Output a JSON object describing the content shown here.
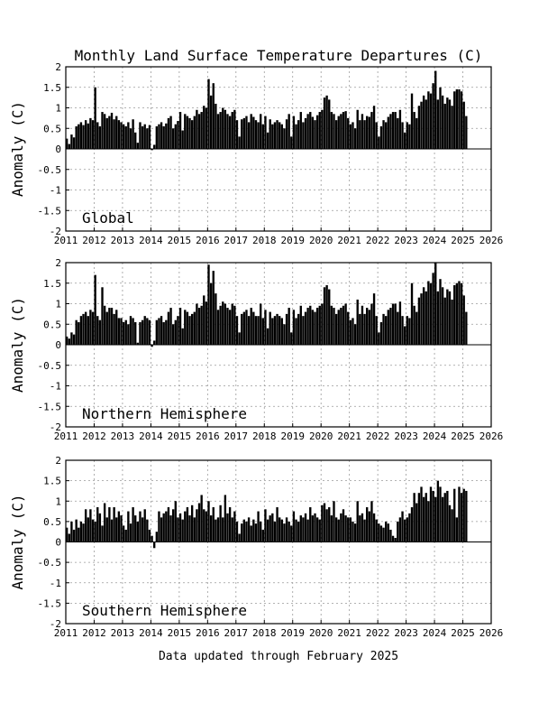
{
  "title": "Monthly Land Surface Temperature Departures (C)",
  "footer": "Data updated through February 2025",
  "chart_data": [
    {
      "type": "bar",
      "name": "Global",
      "panel_label": "Global",
      "ylabel": "Anomaly (C)",
      "xlim": [
        2011,
        2026
      ],
      "ylim": [
        -2,
        2
      ],
      "x_ticks": [
        "2011",
        "2012",
        "2013",
        "2014",
        "2015",
        "2016",
        "2017",
        "2018",
        "2019",
        "2020",
        "2021",
        "2022",
        "2023",
        "2024",
        "2025",
        "2026"
      ],
      "y_ticks": [
        "-2",
        "-1.5",
        "-1",
        "-0.5",
        "0",
        "0.5",
        "1",
        "1.5",
        "2"
      ],
      "grid": true,
      "x_start": "2011-01",
      "values": [
        0.25,
        0.12,
        0.35,
        0.28,
        0.55,
        0.6,
        0.65,
        0.58,
        0.7,
        0.62,
        0.75,
        0.7,
        1.5,
        0.65,
        0.55,
        0.9,
        0.85,
        0.75,
        0.8,
        0.88,
        0.72,
        0.8,
        0.7,
        0.65,
        0.6,
        0.55,
        0.65,
        0.5,
        0.72,
        0.4,
        0.15,
        0.65,
        0.55,
        0.6,
        0.5,
        0.58,
        -0.03,
        0.1,
        0.55,
        0.6,
        0.65,
        0.55,
        0.62,
        0.75,
        0.8,
        0.5,
        0.6,
        0.68,
        0.9,
        0.45,
        0.85,
        0.8,
        0.75,
        0.7,
        0.8,
        0.95,
        0.85,
        0.9,
        1.05,
        1.0,
        1.7,
        1.3,
        1.6,
        1.1,
        0.85,
        0.9,
        1.0,
        0.95,
        0.85,
        0.8,
        0.9,
        0.95,
        0.7,
        0.3,
        0.72,
        0.75,
        0.8,
        0.65,
        0.85,
        0.78,
        0.7,
        0.65,
        0.85,
        0.6,
        0.8,
        0.4,
        0.72,
        0.6,
        0.65,
        0.7,
        0.65,
        0.6,
        0.5,
        0.72,
        0.85,
        0.3,
        0.8,
        0.6,
        0.7,
        0.9,
        0.65,
        0.75,
        0.85,
        0.9,
        0.78,
        0.7,
        0.82,
        0.9,
        0.95,
        1.25,
        1.3,
        1.2,
        0.9,
        0.85,
        0.7,
        0.8,
        0.85,
        0.9,
        0.92,
        0.75,
        0.6,
        0.65,
        0.5,
        0.95,
        0.7,
        0.85,
        0.7,
        0.8,
        0.78,
        0.9,
        1.05,
        0.65,
        0.3,
        0.55,
        0.7,
        0.65,
        0.78,
        0.85,
        0.9,
        0.9,
        0.75,
        0.95,
        0.65,
        0.4,
        0.65,
        0.6,
        1.35,
        0.9,
        0.75,
        1.05,
        1.15,
        1.3,
        1.2,
        1.4,
        1.35,
        1.6,
        1.9,
        1.2,
        1.5,
        1.3,
        1.1,
        1.25,
        1.2,
        1.05,
        1.4,
        1.45,
        1.45,
        1.4,
        1.15,
        0.8
      ]
    },
    {
      "type": "bar",
      "name": "Northern Hemisphere",
      "panel_label": "Northern Hemisphere",
      "ylabel": "Anomaly (C)",
      "xlim": [
        2011,
        2026
      ],
      "ylim": [
        -2,
        2
      ],
      "x_ticks": [
        "2011",
        "2012",
        "2013",
        "2014",
        "2015",
        "2016",
        "2017",
        "2018",
        "2019",
        "2020",
        "2021",
        "2022",
        "2023",
        "2024",
        "2025",
        "2026"
      ],
      "y_ticks": [
        "-2",
        "-1.5",
        "-1",
        "-0.5",
        "0",
        "0.5",
        "1",
        "1.5",
        "2"
      ],
      "grid": true,
      "x_start": "2011-01",
      "values": [
        0.2,
        0.15,
        0.3,
        0.25,
        0.6,
        0.55,
        0.7,
        0.75,
        0.8,
        0.7,
        0.85,
        0.8,
        1.7,
        0.7,
        0.6,
        1.4,
        0.95,
        0.8,
        0.9,
        0.9,
        0.75,
        0.85,
        0.65,
        0.65,
        0.55,
        0.6,
        0.5,
        0.7,
        0.65,
        0.55,
        0.05,
        0.55,
        0.6,
        0.7,
        0.65,
        0.6,
        -0.05,
        0.1,
        0.6,
        0.65,
        0.7,
        0.55,
        0.6,
        0.8,
        0.9,
        0.5,
        0.6,
        0.7,
        0.9,
        0.4,
        0.85,
        0.8,
        0.7,
        0.75,
        0.8,
        1.0,
        0.9,
        0.95,
        1.2,
        1.05,
        1.95,
        1.5,
        1.8,
        1.25,
        0.85,
        0.95,
        1.05,
        1.0,
        0.9,
        0.85,
        1.0,
        0.95,
        0.7,
        0.3,
        0.75,
        0.8,
        0.85,
        0.7,
        0.9,
        0.8,
        0.7,
        0.7,
        1.0,
        0.65,
        0.85,
        0.4,
        0.8,
        0.65,
        0.7,
        0.75,
        0.7,
        0.65,
        0.5,
        0.75,
        0.9,
        0.3,
        0.85,
        0.65,
        0.75,
        0.95,
        0.7,
        0.8,
        0.9,
        0.95,
        0.85,
        0.8,
        0.9,
        0.95,
        1.0,
        1.4,
        1.45,
        1.35,
        0.95,
        0.9,
        0.75,
        0.85,
        0.9,
        0.95,
        1.0,
        0.8,
        0.6,
        0.65,
        0.5,
        1.1,
        0.75,
        0.95,
        0.75,
        0.9,
        0.85,
        1.0,
        1.25,
        0.7,
        0.3,
        0.55,
        0.75,
        0.7,
        0.85,
        0.9,
        1.0,
        1.0,
        0.8,
        1.05,
        0.7,
        0.45,
        0.7,
        0.65,
        1.5,
        0.95,
        0.8,
        1.15,
        1.25,
        1.4,
        1.3,
        1.55,
        1.5,
        1.75,
        2.0,
        1.3,
        1.6,
        1.4,
        1.15,
        1.35,
        1.3,
        1.1,
        1.45,
        1.5,
        1.55,
        1.5,
        1.2,
        0.8
      ]
    },
    {
      "type": "bar",
      "name": "Southern Hemisphere",
      "panel_label": "Southern Hemisphere",
      "ylabel": "Anomaly (C)",
      "xlim": [
        2011,
        2026
      ],
      "ylim": [
        -2,
        2
      ],
      "x_ticks": [
        "2011",
        "2012",
        "2013",
        "2014",
        "2015",
        "2016",
        "2017",
        "2018",
        "2019",
        "2020",
        "2021",
        "2022",
        "2023",
        "2024",
        "2025",
        "2026"
      ],
      "y_ticks": [
        "-2",
        "-1.5",
        "-1",
        "-0.5",
        "0",
        "0.5",
        "1",
        "1.5",
        "2"
      ],
      "grid": true,
      "x_start": "2011-01",
      "values": [
        0.35,
        0.2,
        0.5,
        0.3,
        0.55,
        0.35,
        0.5,
        0.45,
        0.8,
        0.6,
        0.8,
        0.55,
        0.5,
        0.85,
        0.7,
        0.4,
        0.95,
        0.6,
        0.85,
        0.55,
        0.85,
        0.6,
        0.75,
        0.65,
        0.4,
        0.3,
        0.75,
        0.45,
        0.85,
        0.65,
        0.5,
        0.75,
        0.6,
        0.8,
        0.55,
        0.3,
        0.15,
        -0.15,
        0.25,
        0.75,
        0.6,
        0.7,
        0.75,
        0.85,
        0.65,
        0.8,
        1.0,
        0.6,
        0.7,
        0.55,
        0.75,
        0.85,
        0.65,
        0.9,
        0.6,
        0.8,
        0.95,
        1.15,
        0.8,
        0.75,
        1.0,
        0.65,
        0.85,
        0.55,
        0.6,
        0.9,
        0.6,
        1.15,
        0.7,
        0.85,
        0.6,
        0.75,
        0.5,
        0.2,
        0.45,
        0.55,
        0.5,
        0.6,
        0.4,
        0.55,
        0.45,
        0.75,
        0.5,
        0.3,
        0.8,
        0.55,
        0.65,
        0.7,
        0.5,
        0.85,
        0.6,
        0.55,
        0.45,
        0.6,
        0.5,
        0.4,
        0.75,
        0.55,
        0.5,
        0.65,
        0.6,
        0.7,
        0.55,
        0.85,
        0.65,
        0.7,
        0.6,
        0.55,
        0.9,
        0.95,
        0.8,
        0.85,
        0.65,
        1.0,
        0.6,
        0.55,
        0.7,
        0.8,
        0.65,
        0.6,
        0.6,
        0.5,
        0.45,
        1.0,
        0.65,
        0.7,
        0.55,
        0.85,
        0.75,
        1.0,
        0.7,
        0.55,
        0.45,
        0.4,
        0.35,
        0.5,
        0.45,
        0.3,
        0.15,
        0.1,
        0.5,
        0.6,
        0.75,
        0.55,
        0.6,
        0.7,
        0.85,
        1.2,
        0.95,
        1.2,
        1.35,
        1.1,
        1.2,
        1.0,
        1.35,
        1.25,
        1.1,
        1.5,
        1.35,
        1.1,
        1.2,
        1.25,
        0.9,
        0.8,
        1.3,
        0.6,
        1.35,
        1.2,
        1.3,
        1.25
      ]
    }
  ]
}
